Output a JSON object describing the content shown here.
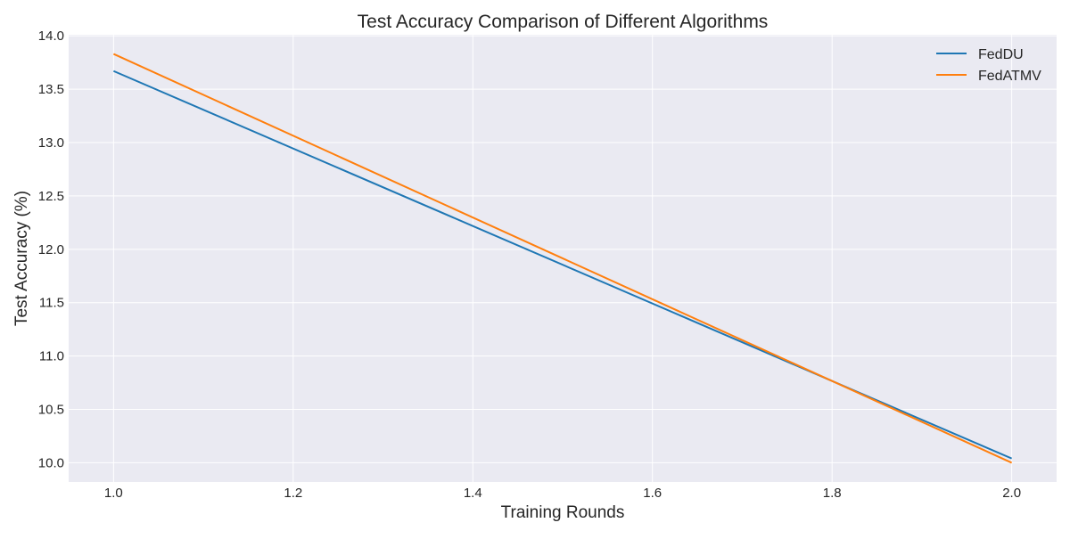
{
  "chart_data": {
    "type": "line",
    "title": "Test Accuracy Comparison of Different Algorithms",
    "xlabel": "Training Rounds",
    "ylabel": "Test Accuracy (%)",
    "x": [
      1.0,
      2.0
    ],
    "series": [
      {
        "name": "FedDU",
        "color": "#1f77b4",
        "values": [
          13.67,
          10.04
        ]
      },
      {
        "name": "FedATMV",
        "color": "#ff7f0e",
        "values": [
          13.83,
          10.0
        ]
      }
    ],
    "xlim": [
      0.95,
      2.05
    ],
    "ylim": [
      9.82,
      14.01
    ],
    "xticks": [
      "1.0",
      "1.2",
      "1.4",
      "1.6",
      "1.8",
      "2.0"
    ],
    "yticks": [
      "10.0",
      "10.5",
      "11.0",
      "11.5",
      "12.0",
      "12.5",
      "13.0",
      "13.5",
      "14.0"
    ],
    "grid": true,
    "legend_position": "top-right",
    "plot_background": "#eaeaf2",
    "grid_color": "#ffffff"
  }
}
